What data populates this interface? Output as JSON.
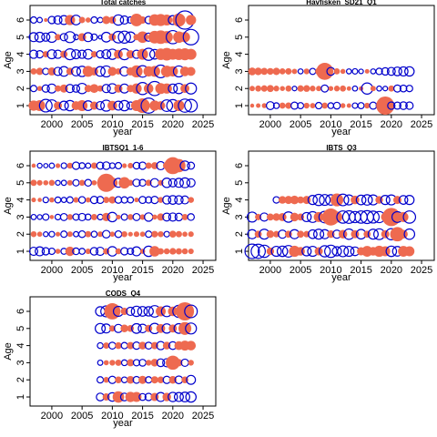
{
  "chart_data": [
    {
      "type": "bubble",
      "title": "Total catches",
      "xlabel": "year",
      "ylabel": "Age",
      "xlim": [
        1996.4,
        2027.1
      ],
      "ylim": [
        0.47,
        6.85
      ],
      "xticks": [
        2000,
        2005,
        2010,
        2015,
        2020,
        2025
      ],
      "yticks": [
        1,
        2,
        3,
        4,
        5,
        6
      ],
      "positive_color": "#ee6a50",
      "negative_color": "#0000cc",
      "years": [
        1997,
        1998,
        1999,
        2000,
        2001,
        2002,
        2003,
        2004,
        2005,
        2006,
        2007,
        2008,
        2009,
        2010,
        2011,
        2012,
        2013,
        2014,
        2015,
        2016,
        2017,
        2018,
        2019,
        2020,
        2021,
        2022,
        2023
      ],
      "ages": [
        1,
        2,
        3,
        4,
        5,
        6
      ],
      "values": [
        [
          0.8,
          0.9,
          -1.2,
          -1.0,
          0.5,
          -0.6,
          -0.8,
          0.6,
          0.9,
          -0.7,
          0.5,
          -0.5,
          -0.9,
          0.7,
          -0.6,
          -0.8,
          -0.4,
          0.9,
          1.6,
          -1.7,
          0.8,
          0.6,
          -1.0,
          -1.1,
          0.9,
          -1.3,
          -1.2
        ],
        [
          -0.3,
          0.2,
          -0.4,
          -0.6,
          0.3,
          0.5,
          -0.5,
          -0.4,
          -0.8,
          0.4,
          0.6,
          0.3,
          -0.5,
          -0.7,
          0.5,
          -0.6,
          0.4,
          0.8,
          -1.1,
          0.7,
          -1.5,
          0.9,
          0.8,
          -0.6,
          -0.8,
          0.6,
          -0.9
        ],
        [
          0.3,
          0.4,
          -0.3,
          0.5,
          -0.5,
          -0.7,
          0.4,
          -0.6,
          -0.8,
          0.9,
          0.5,
          -0.7,
          -0.9,
          0.6,
          0.3,
          -0.6,
          0.5,
          1.1,
          -1.0,
          0.8,
          0.9,
          -1.2,
          1.0,
          0.8,
          -0.9,
          0.7,
          0.6
        ],
        [
          -0.5,
          -0.4,
          0.3,
          -0.6,
          -0.5,
          0.4,
          -0.9,
          -0.6,
          -0.5,
          -0.7,
          0.3,
          -0.4,
          -0.6,
          -0.8,
          0.6,
          -0.9,
          0.5,
          -0.5,
          0.9,
          -1.1,
          -0.7,
          1.0,
          1.2,
          0.9,
          1.0,
          1.1,
          0.9
        ],
        [
          -0.6,
          -0.7,
          -0.5,
          -0.8,
          0.3,
          -0.4,
          -0.9,
          -0.2,
          0.5,
          -0.6,
          -0.3,
          -0.1,
          -0.7,
          0.4,
          -1.0,
          -1.1,
          -0.8,
          0.3,
          1.0,
          -0.5,
          1.2,
          1.4,
          1.1,
          -1.3,
          1.0,
          0.8,
          -1.8
        ],
        [
          -0.3,
          -0.2,
          0.1,
          -0.4,
          -0.5,
          -0.6,
          0.8,
          -0.7,
          0.3,
          0.2,
          -0.3,
          -0.2,
          0.5,
          0.4,
          -0.8,
          -0.5,
          -0.3,
          1.2,
          0.4,
          -0.4,
          1.0,
          1.1,
          0.9,
          -0.6,
          1.3,
          -2.5,
          0.8
        ]
      ]
    },
    {
      "type": "bubble",
      "title": "Havfisken_SD21_Q1",
      "xlabel": "year",
      "ylabel": "Age",
      "xlim": [
        1996.4,
        2027.1
      ],
      "ylim": [
        0.47,
        6.85
      ],
      "xticks": [
        2000,
        2005,
        2010,
        2015,
        2020,
        2025
      ],
      "yticks": [
        1,
        2,
        3,
        4,
        5,
        6
      ],
      "positive_color": "#ee6a50",
      "negative_color": "#0000cc",
      "years": [
        1997,
        1998,
        1999,
        2000,
        2001,
        2002,
        2003,
        2004,
        2005,
        2006,
        2007,
        2008,
        2009,
        2010,
        2011,
        2012,
        2013,
        2014,
        2015,
        2016,
        2017,
        2018,
        2019,
        2020,
        2021,
        2022,
        2023
      ],
      "ages": [
        1,
        2,
        3
      ],
      "values": [
        [
          0.4,
          0.5,
          0.6,
          -1.5,
          -0.8,
          0.9,
          1.0,
          -1.2,
          -0.9,
          0.8,
          0.7,
          -1.0,
          0.9,
          -0.8,
          -1.1,
          0.6,
          0.5,
          -0.7,
          -0.9,
          0.8,
          -1.2,
          -0.9,
          8.0,
          -1.3,
          -1.2,
          -1.4,
          -1.3
        ],
        [
          0.7,
          0.9,
          1.0,
          1.2,
          0.8,
          0.6,
          0.9,
          -0.5,
          1.0,
          1.1,
          0.8,
          0.7,
          -1.2,
          0.6,
          0.8,
          0.9,
          0.5,
          -0.6,
          0.5,
          -3.0,
          0.7,
          -0.6,
          -0.5,
          0.9,
          -1.2,
          -1.1,
          -1.0
        ],
        [
          1.5,
          1.4,
          1.2,
          1.1,
          1.3,
          0.9,
          1.0,
          0.7,
          -0.6,
          0.8,
          -0.9,
          1.2,
          7.0,
          -1.5,
          0.9,
          0.6,
          -0.6,
          -0.7,
          -0.5,
          0.5,
          -0.6,
          -1.0,
          -1.3,
          -1.5,
          -1.8,
          -2.0,
          -2.1
        ]
      ]
    },
    {
      "type": "bubble",
      "title": "IBTSQ1_1-6",
      "xlabel": "year",
      "ylabel": "Age",
      "xlim": [
        1996.4,
        2027.1
      ],
      "ylim": [
        0.47,
        6.85
      ],
      "xticks": [
        2000,
        2005,
        2010,
        2015,
        2020,
        2025
      ],
      "yticks": [
        1,
        2,
        3,
        4,
        5,
        6
      ],
      "positive_color": "#ee6a50",
      "negative_color": "#0000cc",
      "years": [
        1997,
        1998,
        1999,
        2000,
        2001,
        2002,
        2003,
        2004,
        2005,
        2006,
        2007,
        2008,
        2009,
        2010,
        2011,
        2012,
        2013,
        2014,
        2015,
        2016,
        2017,
        2018,
        2019,
        2020,
        2021,
        2022,
        2023
      ],
      "ages": [
        1,
        2,
        3,
        4,
        5,
        6
      ],
      "values": [
        [
          -1.5,
          -1.8,
          -1.2,
          -0.9,
          0.6,
          -0.8,
          2.0,
          -1.0,
          -0.8,
          0.7,
          -1.3,
          -1.5,
          0.9,
          -2.0,
          0.8,
          -1.2,
          -0.9,
          -1.8,
          0.6,
          -2.4,
          2.5,
          0.9,
          0.8,
          1.0,
          0.9,
          0.8,
          0.7
        ],
        [
          0.8,
          0.6,
          -0.5,
          -0.7,
          0.5,
          -0.9,
          0.7,
          -0.6,
          -1.0,
          0.9,
          -0.8,
          0.7,
          -1.3,
          0.6,
          -1.0,
          0.8,
          0.5,
          0.7,
          0.6,
          -0.9,
          1.0,
          0.8,
          -0.7,
          1.1,
          0.9,
          0.6,
          0.7
        ],
        [
          -0.6,
          -0.5,
          -0.9,
          0.4,
          -0.7,
          -1.1,
          0.8,
          -0.9,
          -1.2,
          -0.8,
          0.9,
          -0.7,
          1.6,
          -2.0,
          0.5,
          -0.9,
          0.8,
          -1.1,
          0.7,
          -1.6,
          0.6,
          1.2,
          -1.4,
          -1.5,
          -1.3,
          0.9,
          -1.0
        ],
        [
          0.5,
          0.4,
          -0.7,
          0.6,
          -0.8,
          -0.6,
          -0.9,
          0.7,
          -1.0,
          0.6,
          -1.2,
          -1.1,
          0.9,
          1.2,
          -1.0,
          -0.9,
          -0.8,
          0.5,
          -1.1,
          -0.9,
          -1.2,
          0.8,
          -1.5,
          -1.7,
          -1.6,
          -1.4,
          0.8
        ],
        [
          0.9,
          0.7,
          0.6,
          0.8,
          -0.5,
          -0.6,
          0.7,
          -0.9,
          0.8,
          -1.0,
          0.6,
          0.9,
          7.5,
          2.5,
          -1.8,
          3.0,
          0.8,
          -1.2,
          -1.0,
          0.9,
          -1.6,
          0.7,
          -2.0,
          -1.5,
          -1.8,
          -2.2,
          -1.5
        ],
        [
          0.4,
          -0.5,
          -0.4,
          -0.6,
          0.5,
          -0.7,
          0.8,
          -1.2,
          -0.8,
          -0.6,
          0.9,
          -1.1,
          -1.3,
          -0.7,
          -0.9,
          0.5,
          0.7,
          -1.0,
          -1.2,
          0.9,
          1.1,
          -1.5,
          1.3,
          6.5,
          4.0,
          -2.0,
          -1.1
        ]
      ]
    },
    {
      "type": "bubble",
      "title": "IBTS_Q3",
      "xlabel": "year",
      "ylabel": "Age",
      "xlim": [
        1996.4,
        2027.1
      ],
      "ylim": [
        0.47,
        6.85
      ],
      "xticks": [
        2000,
        2005,
        2010,
        2015,
        2020,
        2025
      ],
      "yticks": [
        1,
        2,
        3,
        4,
        5,
        6
      ],
      "positive_color": "#ee6a50",
      "negative_color": "#0000cc",
      "years": [
        1997,
        1998,
        1999,
        2000,
        2001,
        2002,
        2003,
        2004,
        2005,
        2006,
        2007,
        2008,
        2009,
        2010,
        2011,
        2012,
        2013,
        2014,
        2015,
        2016,
        2017,
        2018,
        2019,
        2020,
        2021,
        2022,
        2023
      ],
      "ages": [
        1,
        2,
        3,
        4
      ],
      "values": [
        [
          -2.5,
          -2.4,
          -1.8,
          0.7,
          -1.2,
          -1.3,
          -1.6,
          1.5,
          0.9,
          -1.0,
          -1.2,
          0.8,
          -1.5,
          -1.8,
          -1.0,
          -1.4,
          -1.2,
          -0.9,
          0.8,
          1.4,
          0.9,
          1.5,
          1.2,
          -1.3,
          -1.1,
          1.4,
          1.2
        ],
        [
          -1.0,
          0.6,
          -1.2,
          0.7,
          0.5,
          -0.8,
          0.6,
          -1.0,
          0.6,
          0.5,
          -0.9,
          -1.2,
          -1.0,
          0.7,
          -0.8,
          0.9,
          -1.3,
          0.8,
          -1.1,
          0.6,
          -1.2,
          -1.4,
          0.8,
          -1.5,
          2.5,
          0.9,
          -1.3
        ],
        [
          -1.2,
          0.5,
          -0.8,
          0.6,
          0.7,
          0.8,
          -1.3,
          0.9,
          0.6,
          -1.0,
          -1.4,
          1.2,
          -1.6,
          3.5,
          1.5,
          -1.8,
          -1.9,
          -1.5,
          -1.8,
          -2.0,
          -1.7,
          -1.5,
          0.9,
          4.0,
          -1.4,
          1.2,
          -1.8
        ],
        [
          null,
          null,
          null,
          null,
          -0.5,
          0.7,
          0.8,
          0.9,
          0.6,
          0.8,
          -1.0,
          -1.5,
          -1.4,
          -1.3,
          2.0,
          -1.6,
          -1.2,
          0.9,
          -1.1,
          -1.3,
          -1.2,
          0.7,
          -1.0,
          -1.2,
          0.8,
          -0.9,
          -1.0
        ]
      ]
    },
    {
      "type": "bubble",
      "title": "CODS_Q4",
      "xlabel": "year",
      "ylabel": "Age",
      "xlim": [
        1996.4,
        2027.1
      ],
      "ylim": [
        0.47,
        6.85
      ],
      "xticks": [
        2000,
        2005,
        2010,
        2015,
        2020,
        2025
      ],
      "yticks": [
        1,
        2,
        3,
        4,
        5,
        6
      ],
      "positive_color": "#ee6a50",
      "negative_color": "#0000cc",
      "years": [
        2008,
        2009,
        2010,
        2011,
        2012,
        2013,
        2014,
        2015,
        2016,
        2017,
        2018,
        2019,
        2020,
        2021,
        2022,
        2023
      ],
      "ages": [
        1,
        2,
        3,
        4,
        5,
        6
      ],
      "values": [
        [
          -0.9,
          0.8,
          -1.1,
          2.0,
          -0.9,
          1.6,
          1.5,
          -0.7,
          -0.8,
          1.0,
          -1.2,
          1.1,
          -1.3,
          -1.2,
          -1.4,
          -1.6
        ],
        [
          -0.6,
          0.5,
          -0.8,
          0.7,
          -0.5,
          0.9,
          -0.7,
          1.0,
          -0.6,
          0.8,
          0.7,
          -0.8,
          0.9,
          -0.9,
          0.7,
          -1.2
        ],
        [
          -0.4,
          0.4,
          0.5,
          0.6,
          -0.5,
          0.8,
          -0.6,
          -0.7,
          0.5,
          0.9,
          -0.9,
          -1.0,
          3.0,
          0.8,
          -0.8,
          0.5
        ],
        [
          -0.5,
          0.6,
          -0.7,
          0.7,
          -0.6,
          0.8,
          -0.8,
          0.9,
          -0.7,
          0.8,
          -1.0,
          0.9,
          -0.9,
          1.2,
          1.5,
          1.4
        ],
        [
          -1.5,
          -1.2,
          0.6,
          -1.0,
          0.9,
          0.7,
          -1.4,
          -1.1,
          0.8,
          -1.6,
          1.2,
          -1.3,
          1.0,
          -1.4,
          2.5,
          -1.8
        ],
        [
          -1.3,
          -1.8,
          4.0,
          -1.5,
          0.8,
          -1.0,
          -1.6,
          -1.4,
          -1.3,
          -2.0,
          1.5,
          -1.7,
          1.4,
          -2.2,
          5.0,
          -2.4
        ]
      ]
    }
  ]
}
